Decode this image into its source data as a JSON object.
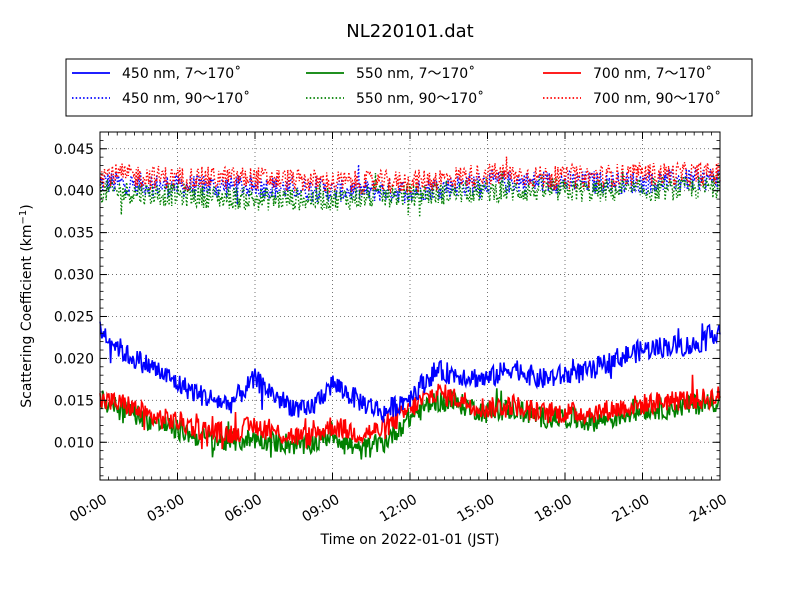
{
  "chart_data": {
    "type": "line",
    "title": "NL220101.dat",
    "xlabel": "Time on 2022-01-01 (JST)",
    "ylabel": "Scattering Coefficient (km",
    "ylabel_exp": "−1",
    "ylabel_close": ")",
    "xlim": [
      "00:00",
      "24:00"
    ],
    "ylim": [
      0.0055,
      0.047
    ],
    "x_ticks": [
      "00:00",
      "03:00",
      "06:00",
      "09:00",
      "12:00",
      "15:00",
      "18:00",
      "21:00",
      "24:00"
    ],
    "y_ticks": [
      "0.010",
      "0.015",
      "0.020",
      "0.025",
      "0.030",
      "0.035",
      "0.040",
      "0.045"
    ],
    "grid": true,
    "legend_position": "top",
    "series": [
      {
        "name": "450 nm, 7～170˚",
        "color": "#0000ff",
        "style": "solid",
        "x": [
          "00:00",
          "01:00",
          "02:00",
          "03:00",
          "04:00",
          "05:00",
          "06:00",
          "07:00",
          "08:00",
          "09:00",
          "10:00",
          "11:00",
          "12:00",
          "13:00",
          "14:00",
          "15:00",
          "16:00",
          "17:00",
          "18:00",
          "19:00",
          "20:00",
          "21:00",
          "22:00",
          "23:00",
          "24:00"
        ],
        "y": [
          0.0235,
          0.0205,
          0.019,
          0.017,
          0.0155,
          0.0145,
          0.0175,
          0.015,
          0.0135,
          0.017,
          0.015,
          0.0135,
          0.0155,
          0.0185,
          0.018,
          0.0175,
          0.019,
          0.0175,
          0.018,
          0.0185,
          0.02,
          0.021,
          0.0215,
          0.0215,
          0.0235
        ]
      },
      {
        "name": "450 nm, 90～170˚",
        "color": "#0000ff",
        "style": "dotted",
        "x": [
          "00:00",
          "03:00",
          "06:00",
          "09:00",
          "12:00",
          "15:00",
          "18:00",
          "21:00",
          "24:00"
        ],
        "y": [
          0.041,
          0.0405,
          0.0405,
          0.04,
          0.04,
          0.041,
          0.041,
          0.041,
          0.0415
        ]
      },
      {
        "name": "550 nm, 7～170˚",
        "color": "#008000",
        "style": "solid",
        "x": [
          "00:00",
          "01:00",
          "02:00",
          "03:00",
          "04:00",
          "05:00",
          "06:00",
          "07:00",
          "08:00",
          "09:00",
          "10:00",
          "11:00",
          "12:00",
          "13:00",
          "14:00",
          "15:00",
          "16:00",
          "17:00",
          "18:00",
          "19:00",
          "20:00",
          "21:00",
          "22:00",
          "23:00",
          "24:00"
        ],
        "y": [
          0.015,
          0.014,
          0.0125,
          0.0115,
          0.0105,
          0.01,
          0.0105,
          0.01,
          0.0095,
          0.011,
          0.009,
          0.01,
          0.013,
          0.015,
          0.0145,
          0.0135,
          0.014,
          0.013,
          0.013,
          0.0125,
          0.013,
          0.014,
          0.014,
          0.0145,
          0.015
        ]
      },
      {
        "name": "550 nm, 90～170˚",
        "color": "#008000",
        "style": "dotted",
        "x": [
          "00:00",
          "03:00",
          "06:00",
          "09:00",
          "12:00",
          "15:00",
          "18:00",
          "21:00",
          "24:00"
        ],
        "y": [
          0.04,
          0.0395,
          0.039,
          0.039,
          0.0395,
          0.04,
          0.04,
          0.04,
          0.0405
        ]
      },
      {
        "name": "700 nm, 7～170˚",
        "color": "#ff0000",
        "style": "solid",
        "x": [
          "00:00",
          "01:00",
          "02:00",
          "03:00",
          "04:00",
          "05:00",
          "06:00",
          "07:00",
          "08:00",
          "09:00",
          "10:00",
          "11:00",
          "12:00",
          "13:00",
          "14:00",
          "15:00",
          "16:00",
          "17:00",
          "18:00",
          "19:00",
          "20:00",
          "21:00",
          "22:00",
          "23:00",
          "24:00"
        ],
        "y": [
          0.015,
          0.0145,
          0.013,
          0.0125,
          0.0115,
          0.011,
          0.012,
          0.011,
          0.0105,
          0.012,
          0.011,
          0.0115,
          0.014,
          0.016,
          0.015,
          0.014,
          0.0145,
          0.0135,
          0.0135,
          0.0135,
          0.014,
          0.0145,
          0.015,
          0.015,
          0.0155
        ]
      },
      {
        "name": "700 nm, 90～170˚",
        "color": "#ff0000",
        "style": "dotted",
        "x": [
          "00:00",
          "03:00",
          "06:00",
          "09:00",
          "12:00",
          "15:00",
          "18:00",
          "21:00",
          "24:00"
        ],
        "y": [
          0.042,
          0.0415,
          0.0415,
          0.041,
          0.041,
          0.042,
          0.0415,
          0.042,
          0.042
        ]
      }
    ]
  }
}
